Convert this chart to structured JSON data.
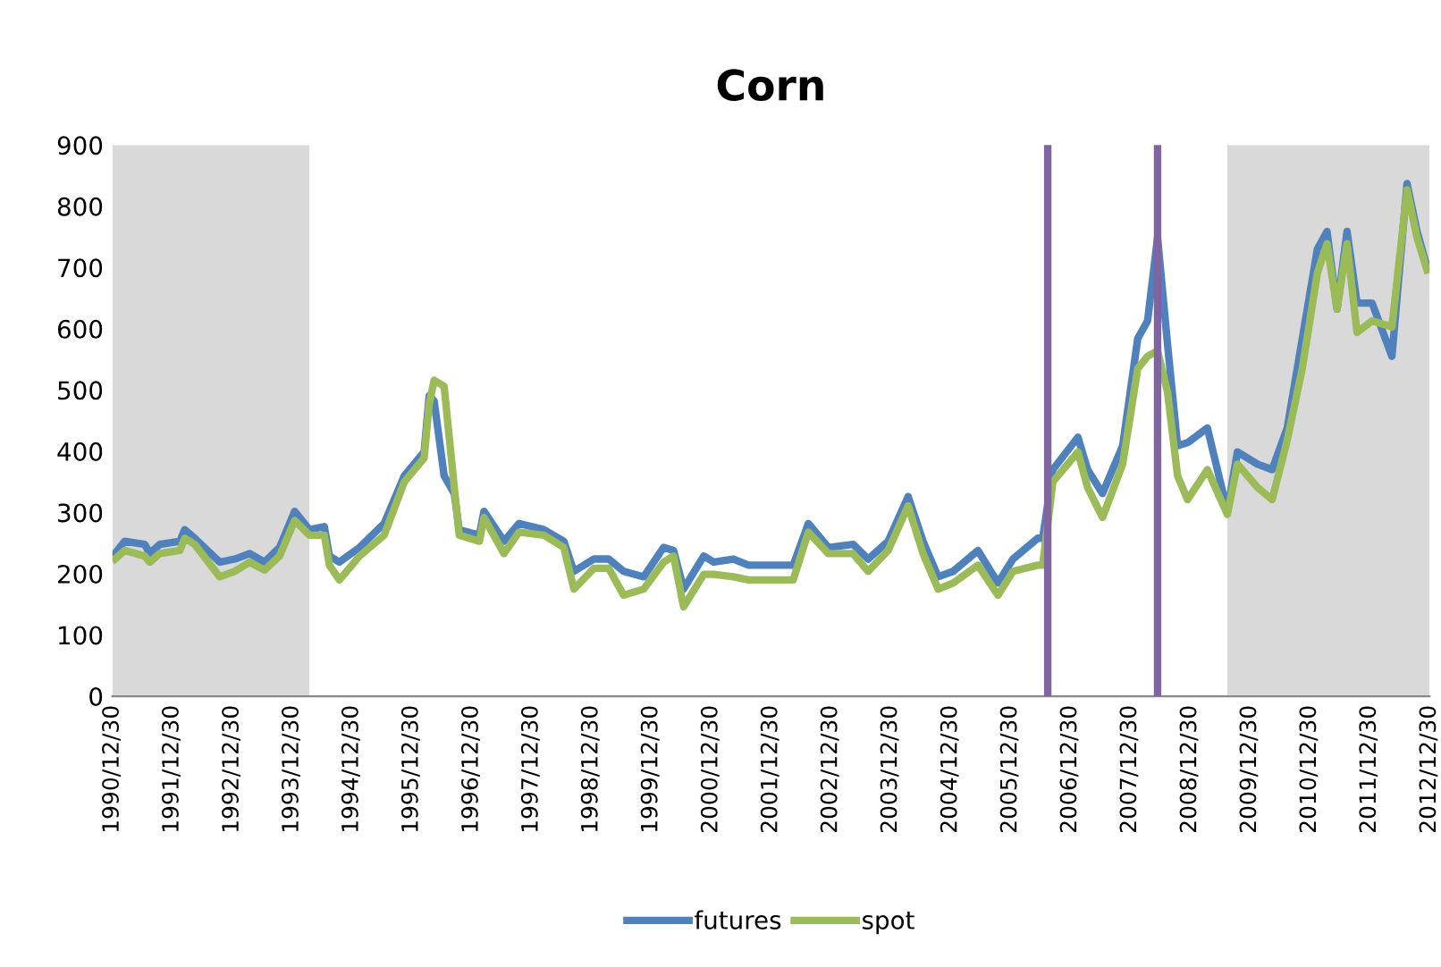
{
  "chart_data": {
    "type": "line",
    "title": "Corn",
    "x": [
      "1991-01",
      "1991-03",
      "1991-07",
      "1991-08",
      "1991-10",
      "1992-02",
      "1992-03",
      "1992-05",
      "1992-10",
      "1993-01",
      "1993-04",
      "1993-07",
      "1993-10",
      "1994-01",
      "1994-04",
      "1994-07",
      "1994-08",
      "1994-10",
      "1995-02",
      "1995-07",
      "1995-11",
      "1996-03",
      "1996-04",
      "1996-05",
      "1996-07",
      "1996-09",
      "1996-10",
      "1997-02",
      "1997-03",
      "1997-07",
      "1997-10",
      "1998-03",
      "1998-07",
      "1998-09",
      "1999-01",
      "1999-04",
      "1999-07",
      "1999-11",
      "2000-03",
      "2000-05",
      "2000-07",
      "2000-11",
      "2001-01",
      "2001-05",
      "2001-08",
      "2002-01",
      "2002-05",
      "2002-08",
      "2002-12",
      "2003-05",
      "2003-08",
      "2003-12",
      "2004-04",
      "2004-07",
      "2004-10",
      "2005-01",
      "2005-06",
      "2005-10",
      "2006-01",
      "2006-06",
      "2006-07",
      "2006-09",
      "2007-02",
      "2007-04",
      "2007-07",
      "2007-11",
      "2008-02",
      "2008-04",
      "2008-06",
      "2008-08",
      "2008-10",
      "2008-12",
      "2009-04",
      "2009-08",
      "2009-10",
      "2010-02",
      "2010-05",
      "2010-08",
      "2010-11",
      "2011-02",
      "2011-04",
      "2011-06",
      "2011-08",
      "2011-10",
      "2012-01",
      "2012-05",
      "2012-08",
      "2012-10",
      "2012-12"
    ],
    "series": [
      {
        "name": "futures",
        "color": "#4f81bd",
        "values": [
          233,
          253,
          248,
          233,
          248,
          253,
          272,
          258,
          219,
          224,
          233,
          219,
          243,
          302,
          272,
          277,
          229,
          219,
          243,
          282,
          360,
          399,
          491,
          482,
          360,
          331,
          272,
          263,
          302,
          253,
          282,
          272,
          253,
          204,
          224,
          224,
          204,
          195,
          243,
          238,
          175,
          229,
          219,
          224,
          214,
          214,
          214,
          282,
          243,
          248,
          224,
          253,
          326,
          253,
          195,
          204,
          238,
          185,
          224,
          258,
          258,
          370,
          423,
          370,
          331,
          409,
          584,
          613,
          749,
          574,
          409,
          414,
          438,
          302,
          399,
          379,
          370,
          438,
          584,
          730,
          759,
          632,
          759,
          642,
          642,
          555,
          837,
          759,
          701
        ]
      },
      {
        "name": "spot",
        "color": "#9bbb59",
        "values": [
          224,
          238,
          229,
          219,
          233,
          238,
          258,
          248,
          195,
          204,
          219,
          206,
          229,
          287,
          263,
          263,
          214,
          190,
          229,
          263,
          350,
          389,
          477,
          516,
          506,
          341,
          263,
          253,
          292,
          233,
          268,
          263,
          243,
          175,
          209,
          209,
          165,
          175,
          219,
          229,
          146,
          199,
          199,
          195,
          190,
          190,
          190,
          268,
          233,
          233,
          204,
          238,
          311,
          233,
          175,
          185,
          214,
          165,
          204,
          214,
          214,
          350,
          399,
          341,
          292,
          379,
          535,
          555,
          564,
          496,
          360,
          321,
          370,
          297,
          379,
          341,
          321,
          418,
          535,
          691,
          739,
          632,
          739,
          594,
          613,
          603,
          827,
          749,
          696
        ]
      }
    ],
    "xlim": [
      "1990-12-30",
      "2012-12-30"
    ],
    "xticks": [
      {
        "value": "1990-12-30",
        "label": "1990/12/30"
      },
      {
        "value": "1991-12-30",
        "label": "1991/12/30"
      },
      {
        "value": "1992-12-30",
        "label": "1992/12/30"
      },
      {
        "value": "1993-12-30",
        "label": "1993/12/30"
      },
      {
        "value": "1994-12-30",
        "label": "1994/12/30"
      },
      {
        "value": "1995-12-30",
        "label": "1995/12/30"
      },
      {
        "value": "1996-12-30",
        "label": "1996/12/30"
      },
      {
        "value": "1997-12-30",
        "label": "1997/12/30"
      },
      {
        "value": "1998-12-30",
        "label": "1998/12/30"
      },
      {
        "value": "1999-12-30",
        "label": "1999/12/30"
      },
      {
        "value": "2000-12-30",
        "label": "2000/12/30"
      },
      {
        "value": "2001-12-30",
        "label": "2001/12/30"
      },
      {
        "value": "2002-12-30",
        "label": "2002/12/30"
      },
      {
        "value": "2003-12-30",
        "label": "2003/12/30"
      },
      {
        "value": "2004-12-30",
        "label": "2004/12/30"
      },
      {
        "value": "2005-12-30",
        "label": "2005/12/30"
      },
      {
        "value": "2006-12-30",
        "label": "2006/12/30"
      },
      {
        "value": "2007-12-30",
        "label": "2007/12/30"
      },
      {
        "value": "2008-12-30",
        "label": "2008/12/30"
      },
      {
        "value": "2009-12-30",
        "label": "2009/12/30"
      },
      {
        "value": "2010-12-30",
        "label": "2010/12/30"
      },
      {
        "value": "2011-12-30",
        "label": "2011/12/30"
      },
      {
        "value": "2012-12-30",
        "label": "2012/12/30"
      }
    ],
    "ylim": [
      0,
      900
    ],
    "yticks": [
      0,
      100,
      200,
      300,
      400,
      500,
      600,
      700,
      800,
      900
    ],
    "bands": [
      {
        "axis": "x",
        "from": "1990-12-30",
        "to": "1994-04",
        "color": "#d9d9d9"
      },
      {
        "axis": "x",
        "from": "2009-08",
        "to": "2012-12-30",
        "color": "#d9d9d9"
      }
    ],
    "ref_lines": [
      {
        "axis": "x",
        "value": "2006-08",
        "color": "#8064a2"
      },
      {
        "axis": "x",
        "value": "2008-06",
        "color": "#8064a2"
      }
    ],
    "grid": false,
    "legend": "bottom",
    "line_style": "solid",
    "marker": "none"
  }
}
